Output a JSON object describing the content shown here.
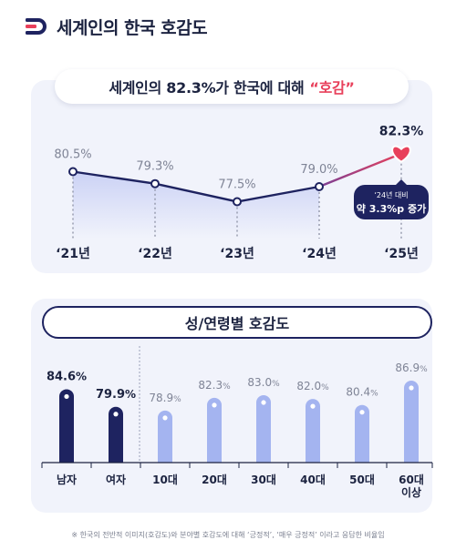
{
  "header": {
    "title": "세계인의 한국 호감도"
  },
  "chart_data": [
    {
      "type": "line",
      "title_main": "세계인의 82.3%가 한국에 대해",
      "title_accent": "“호감”",
      "categories": [
        "‘21년",
        "‘22년",
        "‘23년",
        "‘24년",
        "‘25년"
      ],
      "values": [
        80.5,
        79.3,
        77.5,
        79.0,
        82.3
      ],
      "value_labels": [
        "80.5%",
        "79.3%",
        "77.5%",
        "79.0%",
        "82.3%"
      ],
      "ylim": [
        74,
        84
      ],
      "callout": {
        "line1": "‘24년 대비",
        "line2": "약 3.3%p 증가"
      },
      "colors": {
        "line": "#1e2360",
        "highlight": "#e8405b",
        "fill": "#c9d0f5"
      }
    },
    {
      "type": "bar",
      "title": "성/연령별 호감도",
      "categories": [
        "남자",
        "여자",
        "10대",
        "20대",
        "30대",
        "40대",
        "50대",
        "60대\n이상"
      ],
      "values": [
        84.6,
        79.9,
        78.9,
        82.3,
        83.0,
        82.0,
        80.4,
        86.9
      ],
      "value_labels": [
        "84.6%",
        "79.9%",
        "78.9%",
        "82.3%",
        "83.0%",
        "82.0%",
        "80.4%",
        "86.9%"
      ],
      "groups": [
        "gender",
        "gender",
        "age",
        "age",
        "age",
        "age",
        "age",
        "age"
      ],
      "ylim": [
        65,
        88
      ],
      "colors": {
        "gender": "#1e2360",
        "age": "#a4b4f0"
      }
    }
  ],
  "footnote": "※ 한국의 전반적 이미지(호감도)와 분야별 호감도에 대해 ‘긍정적’, ‘매우 긍정적’ 이라고 응답한 비율임"
}
